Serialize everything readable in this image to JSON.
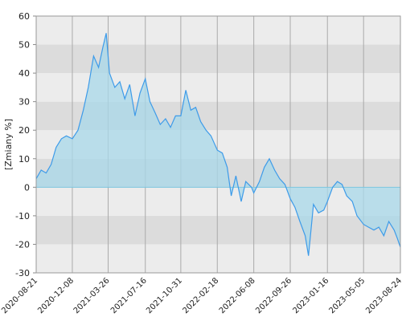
{
  "chart_data": {
    "type": "line",
    "y_label": "[Zmiany %]",
    "x": [
      "2020-08-21",
      "2020-09-05",
      "2020-09-20",
      "2020-10-05",
      "2020-10-20",
      "2020-11-05",
      "2020-11-20",
      "2020-12-08",
      "2020-12-25",
      "2021-01-10",
      "2021-01-25",
      "2021-02-10",
      "2021-02-25",
      "2021-03-10",
      "2021-03-20",
      "2021-03-30",
      "2021-04-15",
      "2021-04-30",
      "2021-05-15",
      "2021-05-30",
      "2021-06-15",
      "2021-06-30",
      "2021-07-16",
      "2021-07-30",
      "2021-08-15",
      "2021-08-30",
      "2021-09-15",
      "2021-09-30",
      "2021-10-15",
      "2021-10-31",
      "2021-11-15",
      "2021-11-30",
      "2021-12-15",
      "2021-12-30",
      "2022-01-15",
      "2022-01-30",
      "2022-02-18",
      "2022-03-05",
      "2022-03-20",
      "2022-04-01",
      "2022-04-15",
      "2022-05-01",
      "2022-05-15",
      "2022-06-01",
      "2022-06-08",
      "2022-06-25",
      "2022-07-10",
      "2022-07-25",
      "2022-08-10",
      "2022-08-25",
      "2022-09-10",
      "2022-09-26",
      "2022-10-10",
      "2022-10-25",
      "2022-11-10",
      "2022-11-20",
      "2022-12-05",
      "2022-12-20",
      "2023-01-05",
      "2023-01-16",
      "2023-02-01",
      "2023-02-15",
      "2023-03-01",
      "2023-03-15",
      "2023-04-01",
      "2023-04-15",
      "2023-05-05",
      "2023-05-20",
      "2023-06-05",
      "2023-06-20",
      "2023-07-05",
      "2023-07-20",
      "2023-08-05",
      "2023-08-15",
      "2023-08-24"
    ],
    "series": [
      {
        "color": "#3d9be9",
        "values": [
          3,
          6,
          5,
          8,
          14,
          17,
          18,
          17,
          20,
          27,
          35,
          46,
          42,
          49,
          54,
          40,
          35,
          37,
          31,
          36,
          25,
          33,
          38,
          30,
          26,
          22,
          24,
          21,
          25,
          25,
          34,
          27,
          28,
          23,
          20,
          18,
          13,
          12,
          7,
          -3,
          4,
          -5,
          2,
          0,
          -2,
          2,
          7,
          10,
          6,
          3,
          1,
          -4,
          -7,
          -12,
          -17,
          -24,
          -6,
          -9,
          -8,
          -5,
          0,
          2,
          1,
          -3,
          -5,
          -10,
          -13,
          -14,
          -15,
          -14,
          -17,
          -12,
          -15,
          -18,
          -21
        ]
      }
    ],
    "xlim": [
      "2020-08-21",
      "2023-08-24"
    ],
    "xticks": [
      "2020-08-21",
      "2020-12-08",
      "2021-03-26",
      "2021-07-16",
      "2021-10-31",
      "2022-02-18",
      "2022-06-08",
      "2022-09-26",
      "2023-01-16",
      "2023-05-05",
      "2023-08-24"
    ],
    "ylim": [
      -30,
      60
    ],
    "yticks": [
      -30,
      -20,
      -10,
      0,
      10,
      20,
      30,
      40,
      50,
      60
    ],
    "grid": true,
    "area_fill": "#a8d8ea"
  }
}
